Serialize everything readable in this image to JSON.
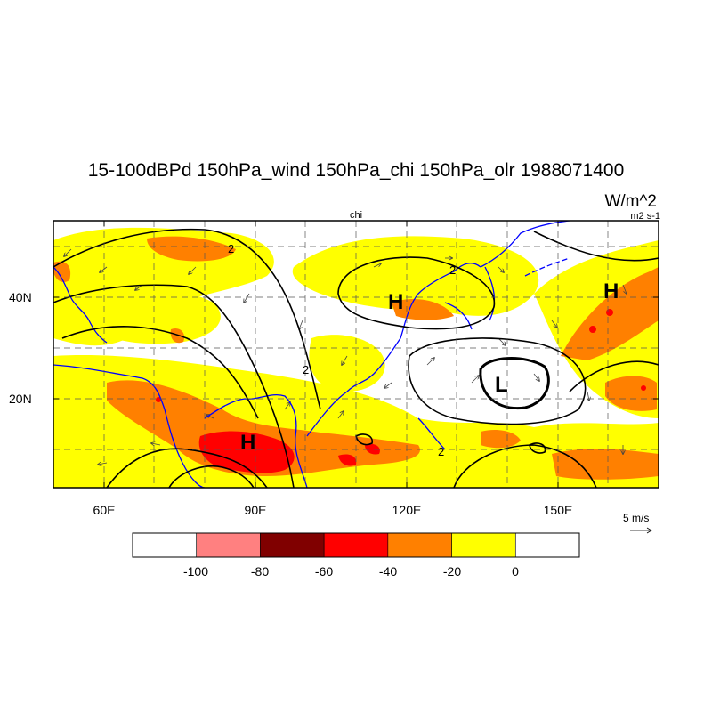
{
  "title": "15-100dBPd 150hPa_wind 150hPa_chi 150hPa_olr 1988071400",
  "units": "W/m^2",
  "chi_center_label": "chi",
  "chi_units": "m2 s-1",
  "lat_labels": [
    "40N",
    "20N"
  ],
  "lon_labels": [
    "60E",
    "90E",
    "120E",
    "150E"
  ],
  "reference_vector": {
    "label": "5 m/s",
    "magnitude": 5
  },
  "colorbar": {
    "colors": [
      "#ffffff",
      "#ff8080",
      "#800000",
      "#ff0000",
      "#ff8000",
      "#ffff00",
      "#ffffff"
    ],
    "labels": [
      "-100",
      "-80",
      "-60",
      "-40",
      "-20",
      "0"
    ]
  },
  "map": {
    "lon_range": [
      50,
      170
    ],
    "lat_range": [
      2,
      55
    ],
    "contour_labels": [
      "2",
      "2",
      "2",
      "2"
    ],
    "highs": [
      "H",
      "H",
      "H"
    ],
    "lows": [
      "L"
    ]
  },
  "colors": {
    "coast": "#0000ff",
    "olr_light": "#ffff00",
    "olr_mid": "#ff8000",
    "olr_strong": "#ff0000",
    "contour": "#000000"
  }
}
